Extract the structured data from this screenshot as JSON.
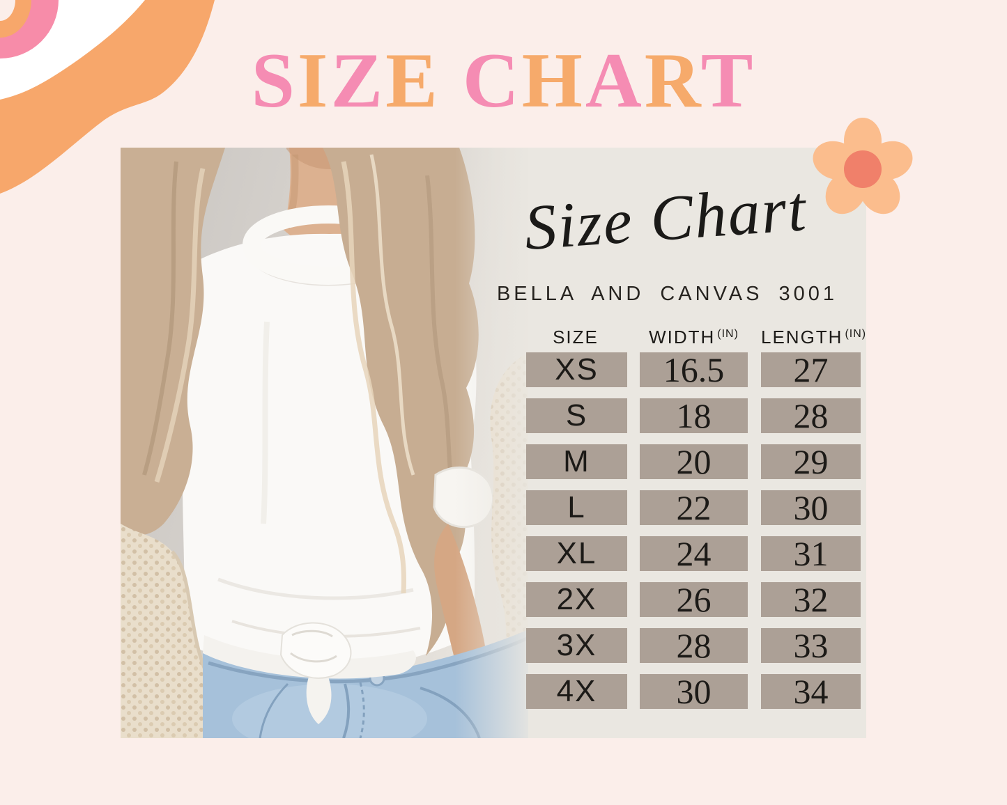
{
  "colors": {
    "page-bg": "#FBEEEA",
    "card-bg": "#EAE7E1",
    "cell-bg": "#ACA096",
    "ink": "#1C1A17",
    "title-pink": "#F58CB3",
    "title-orange": "#F6AA6B",
    "swirl-pink": "#F78CA9",
    "swirl-orange": "#F7A76B",
    "swirl-white": "#FFFFFF",
    "flower-petal": "#FBBD8D",
    "flower-center": "#F0806A"
  },
  "header": {
    "title": "SIZE CHART",
    "title_letters": [
      {
        "ch": "S",
        "color": "#F58CB3"
      },
      {
        "ch": "I",
        "color": "#F6AA6B"
      },
      {
        "ch": "Z",
        "color": "#F58CB3"
      },
      {
        "ch": "E",
        "color": "#F6AA6B"
      },
      {
        "ch": " ",
        "color": ""
      },
      {
        "ch": "C",
        "color": "#F58CB3"
      },
      {
        "ch": "H",
        "color": "#F6AA6B"
      },
      {
        "ch": "A",
        "color": "#F58CB3"
      },
      {
        "ch": "R",
        "color": "#F6AA6B"
      },
      {
        "ch": "T",
        "color": "#F58CB3"
      }
    ]
  },
  "card": {
    "script_title": "Size Chart",
    "subtitle": "BELLA AND CANVAS 3001",
    "photo_description": "Woman with long wavy blonde hair wearing a white crew-neck t-shirt knotted at the waist, a beige chunky knit cardigan and light blue jeans"
  },
  "size_chart": {
    "columns": [
      {
        "label": "SIZE",
        "unit": ""
      },
      {
        "label": "WIDTH",
        "unit": "(IN)"
      },
      {
        "label": "LENGTH",
        "unit": "(IN)"
      }
    ],
    "rows": [
      {
        "size": "XS",
        "width": "16.5",
        "length": "27"
      },
      {
        "size": "S",
        "width": "18",
        "length": "28"
      },
      {
        "size": "M",
        "width": "20",
        "length": "29"
      },
      {
        "size": "L",
        "width": "22",
        "length": "30"
      },
      {
        "size": "XL",
        "width": "24",
        "length": "31"
      },
      {
        "size": "2X",
        "width": "26",
        "length": "32"
      },
      {
        "size": "3X",
        "width": "28",
        "length": "33"
      },
      {
        "size": "4X",
        "width": "30",
        "length": "34"
      }
    ]
  }
}
